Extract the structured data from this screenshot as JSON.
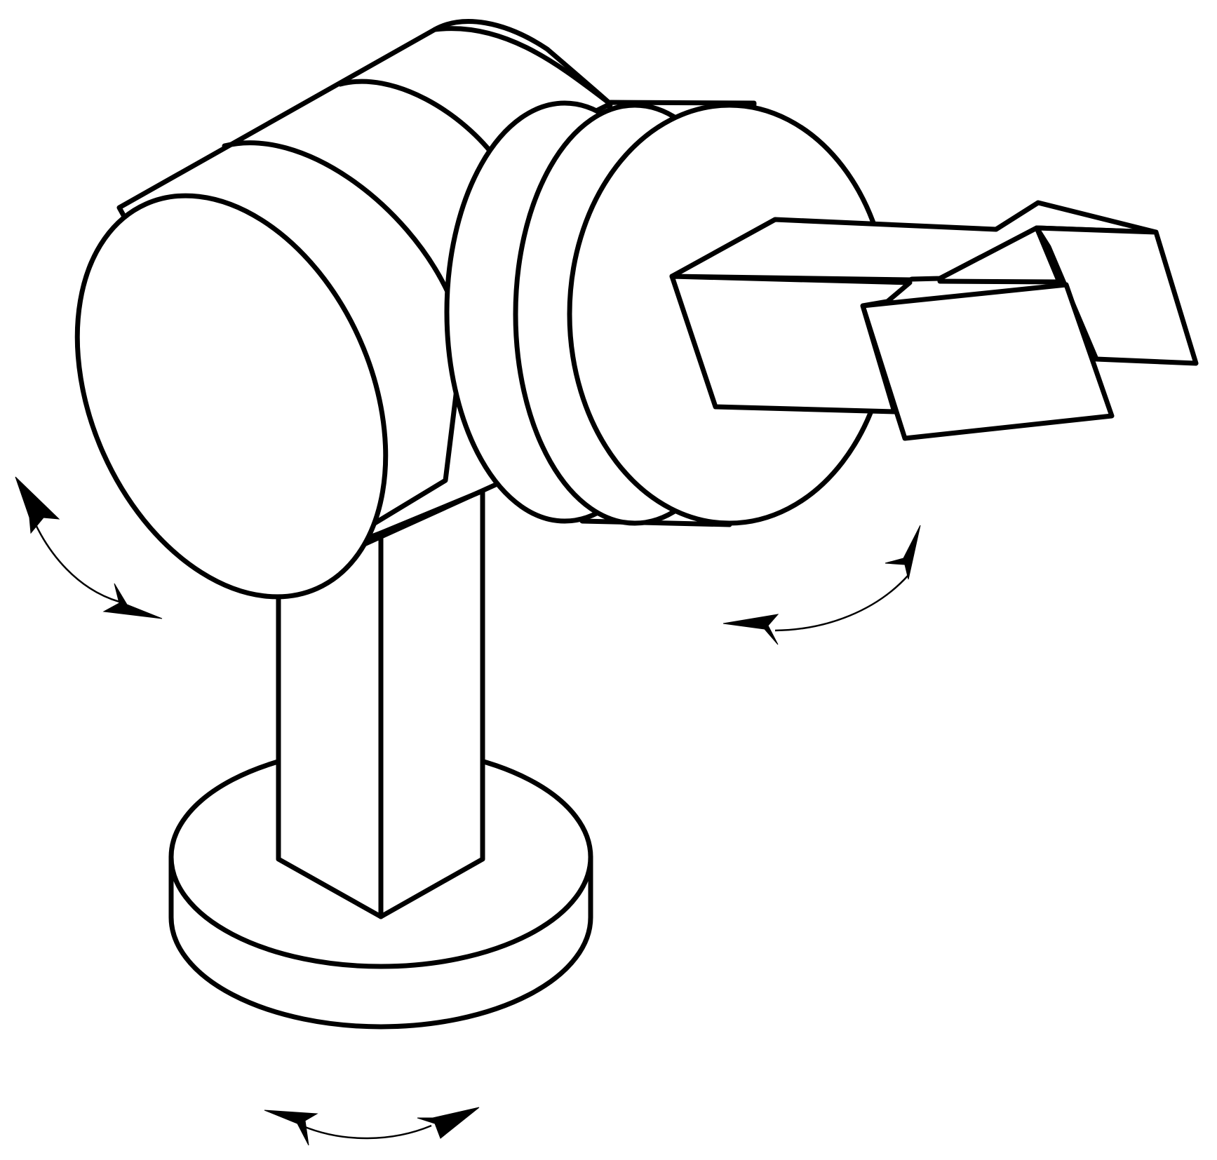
{
  "figure": {
    "type": "line-drawing",
    "subject": "robotic-arm",
    "stroke_color": "#000000",
    "background_color": "#ffffff",
    "text_labels": []
  }
}
